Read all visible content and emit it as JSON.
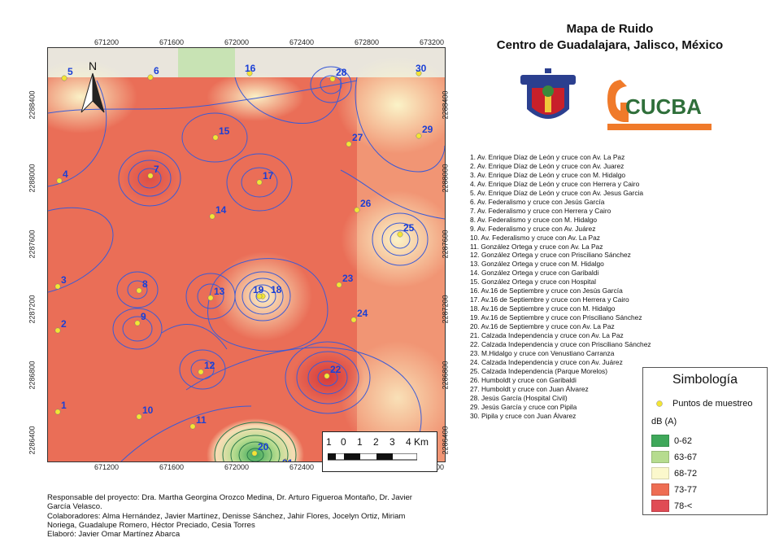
{
  "title": {
    "line1": "Mapa de Ruido",
    "line2": "Centro de Guadalajara, Jalisco, México"
  },
  "logos": {
    "cucba_text": "CUCBA"
  },
  "coordinates": {
    "x_ticks": [
      "671200",
      "671600",
      "672000",
      "672400",
      "672800",
      "673200"
    ],
    "y_ticks": [
      "2288400",
      "2288000",
      "2287600",
      "2287200",
      "2286800",
      "2286400"
    ]
  },
  "north_label": "N",
  "scale": {
    "labels": [
      "1",
      "0",
      "1",
      "2",
      "3",
      "4 Km"
    ]
  },
  "points": [
    {
      "n": "1",
      "label": "Av.    Enrique Díaz de León y cruce con Av. La Paz"
    },
    {
      "n": "2",
      "label": "Av.    Enrique Díaz de León y cruce con Av. Juarez"
    },
    {
      "n": "3",
      "label": "Av.    Enrique Díaz de León y cruce con M. Hidalgo"
    },
    {
      "n": "4",
      "label": "Av.    Enrique Díaz de León y cruce con Herrera y Cairo"
    },
    {
      "n": "5",
      "label": "Av.    Enrique Díaz de León y cruce con Av. Jesus Garcia"
    },
    {
      "n": "6",
      "label": "Av. Federalismo y cruce con Jesús García"
    },
    {
      "n": "7",
      "label": "Av. Federalismo y cruce con Herrera y Cairo"
    },
    {
      "n": "8",
      "label": "Av. Federalismo y cruce con M. Hidalgo"
    },
    {
      "n": "9",
      "label": "Av. Federalismo y cruce con Av. Juárez"
    },
    {
      "n": "10",
      "label": "Av. Federalismo y cruce con Av. La Paz"
    },
    {
      "n": "11",
      "label": "González Ortega y cruce con Av. La Paz"
    },
    {
      "n": "12",
      "label": "González Ortega y cruce con Prisciliano Sánchez"
    },
    {
      "n": "13",
      "label": "González Ortega y cruce con M. Hidalgo"
    },
    {
      "n": "14",
      "label": "González Ortega y cruce con Garibaldi"
    },
    {
      "n": "15",
      "label": "González Ortega y cruce con Hospital"
    },
    {
      "n": "16",
      "label": "Av.16 de Septiembre y cruce con Jesús García"
    },
    {
      "n": "17",
      "label": "Av.16 de Septiembre y cruce con Herrera y Cairo"
    },
    {
      "n": "18",
      "label": "Av.16 de Septiembre y cruce con M. Hidalgo"
    },
    {
      "n": "19",
      "label": "Av.16 de Septiembre y cruce con Prisciliano Sánchez"
    },
    {
      "n": "20",
      "label": "Av.16 de Septiembre y cruce con Av. La Paz"
    },
    {
      "n": "21",
      "label": "Calzada Independencia y cruce con Av. La Paz"
    },
    {
      "n": "22",
      "label": "Calzada Independencia y cruce con Prisciliano Sánchez"
    },
    {
      "n": "23",
      "label": "M.Hidalgo y cruce con Venustiano Carranza"
    },
    {
      "n": "24",
      "label": "Calzada Independencia y cruce con Av. Juárez"
    },
    {
      "n": "25",
      "label": "Calzada Independencia (Parque Morelos)"
    },
    {
      "n": "26",
      "label": "Humboldt y cruce con Garibaldi"
    },
    {
      "n": "27",
      "label": "Humboldt y cruce con Juan Álvarez"
    },
    {
      "n": "28",
      "label": "Jesús García (Hospital Civil)"
    },
    {
      "n": "29",
      "label": "Jesús García y cruce con Pipila"
    },
    {
      "n": "30",
      "label": "Pipila y cruce con Juan Álvarez"
    }
  ],
  "legend": {
    "title": "Simbología",
    "points_label": "Puntos de muestreo",
    "unit": "dB (A)",
    "classes": [
      {
        "label": "0-62",
        "color": "#3fa85a"
      },
      {
        "label": "63-67",
        "color": "#b6dc8f"
      },
      {
        "label": "68-72",
        "color": "#fbf8cc"
      },
      {
        "label": "73-77",
        "color": "#ee6d53"
      },
      {
        "label": "78-<",
        "color": "#e04b55"
      }
    ]
  },
  "credits": {
    "line1": "Responsable del proyecto: Dra. Martha Georgina Orozco Medina, Dr. Arturo Figueroa Montaño, Dr. Javier",
    "line2": "García Velasco.",
    "line3": "Colaboradores: Alma Hernández, Javier Martínez, Denisse Sánchez, Jahir Flores, Jocelyn Ortiz, Miriam",
    "line4": "Noriega, Guadalupe Romero, Héctor Preciado, Cesia Torres",
    "line5": "Elaboró: Javier Omar Martínez Abarca"
  },
  "colors": {
    "contour": "#3b5bd6",
    "point_fill": "#f3e534",
    "label": "#1a3fd6"
  }
}
